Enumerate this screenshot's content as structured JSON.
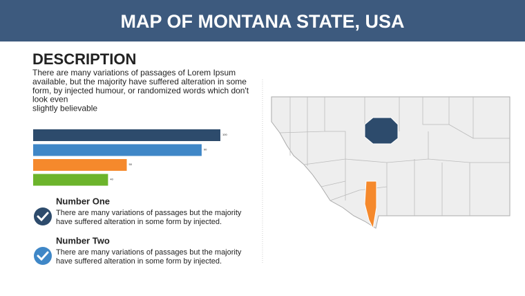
{
  "header": {
    "title": "MAP OF MONTANA STATE, USA"
  },
  "description": {
    "heading": "DESCRIPTION",
    "lines": [
      "There are many variations of passages of Lorem Ipsum",
      "available, but the majority have suffered alteration in some",
      "form, by injected humour, or randomized words which don't",
      "look even",
      "slightly believable"
    ]
  },
  "chart_data": {
    "type": "bar",
    "orientation": "horizontal",
    "values": [
      100,
      90,
      50,
      40
    ],
    "value_labels": [
      "100",
      "90",
      "50",
      "40"
    ],
    "colors": [
      "#2d4b6c",
      "#3f87c7",
      "#f5892c",
      "#6cb42b"
    ],
    "xlim": [
      0,
      100
    ]
  },
  "items": [
    {
      "title": "Number One",
      "lines": [
        "There are many variations of passages but the majority",
        "have  suffered alteration in some form by injected."
      ]
    },
    {
      "title": "Number Two",
      "lines": [
        "There are many variations of passages but the majority",
        "have  suffered alteration in some form by injected."
      ]
    }
  ]
}
